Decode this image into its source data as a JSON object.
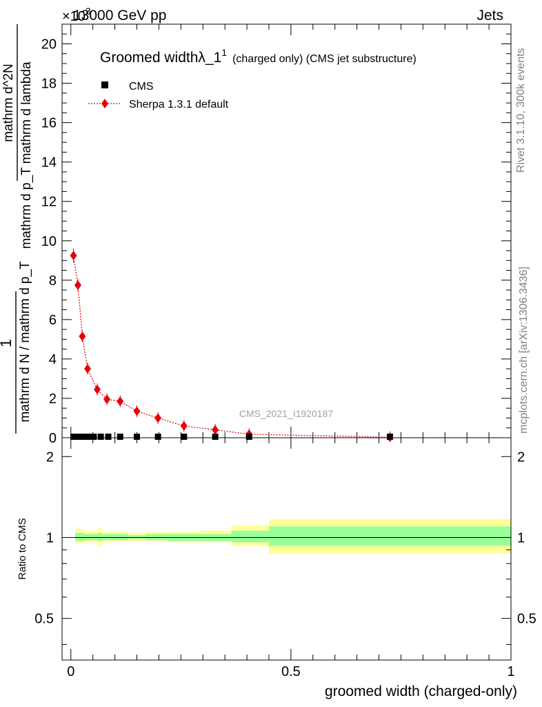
{
  "header": {
    "left_label": "13000 GeV pp",
    "right_label": "Jets",
    "exponent_label": "×10",
    "exponent_power": "3"
  },
  "side_labels": {
    "rivet": "Rivet 3.1.10,  300k events",
    "mcplots": "mcplots.cern.ch [arXiv:1306.3436]"
  },
  "chart_data": [
    {
      "type": "scatter",
      "title": "Groomed width",
      "title_symbol": "λ_1",
      "title_superscript": "1",
      "title_suffix": "(charged only) (CMS jet substructure)",
      "ylabel": {
        "prefactor_num": "1",
        "prefactor_den": "mathrm d N / mathrm d p_T",
        "main_num": "mathrm d^2N",
        "main_den": "mathrm d p_T mathrm d lambda"
      },
      "y_scale_exponent": 3,
      "ylim": [
        0,
        21
      ],
      "xlim": [
        -0.02,
        1.0
      ],
      "yticks_major": [
        0,
        2,
        4,
        6,
        8,
        10,
        12,
        14,
        16,
        18,
        20
      ],
      "ytick_labels": [
        "0",
        "2",
        "4",
        "6",
        "8",
        "10",
        "12",
        "14",
        "16",
        "18",
        "20"
      ],
      "watermark": "CMS_2021_I1920187",
      "legend_position": "top-left",
      "series": [
        {
          "name": "CMS",
          "color": "#000000",
          "marker": "square",
          "x": [
            0.006,
            0.016,
            0.026,
            0.038,
            0.052,
            0.068,
            0.085,
            0.112,
            0.15,
            0.198,
            0.257,
            0.328,
            0.405,
            0.725
          ],
          "y": [
            0.015,
            0.015,
            0.015,
            0.015,
            0.015,
            0.015,
            0.015,
            0.015,
            0.015,
            0.015,
            0.015,
            0.015,
            0.015,
            0.015
          ]
        },
        {
          "name": "Sherpa 1.3.1 default",
          "color": "#e8000b",
          "marker": "diamond",
          "line": "dotted",
          "x": [
            0.006,
            0.016,
            0.026,
            0.038,
            0.06,
            0.082,
            0.112,
            0.15,
            0.198,
            0.257,
            0.328,
            0.405,
            0.725
          ],
          "y": [
            9.25,
            7.75,
            5.15,
            3.5,
            2.45,
            1.95,
            1.85,
            1.35,
            1.0,
            0.6,
            0.4,
            0.18,
            0.02
          ]
        }
      ]
    },
    {
      "type": "area",
      "ylabel": "Ratio to CMS",
      "xlabel": "groomed width (charged-only)",
      "ylim": [
        0.35,
        2.35
      ],
      "log_y": true,
      "xticks": [
        0,
        0.5,
        1
      ],
      "xtick_labels": [
        "0",
        "0.5",
        "1"
      ],
      "yticks": [
        0.5,
        1,
        2
      ],
      "ytick_labels": [
        "0.5",
        "1",
        "2"
      ],
      "reference_line": 1,
      "bands": {
        "colors": {
          "outer": "#ffff99",
          "inner": "#99ff99"
        },
        "edges": [
          0.0,
          0.01,
          0.02,
          0.03,
          0.045,
          0.06,
          0.07,
          0.095,
          0.13,
          0.17,
          0.22,
          0.29,
          0.365,
          0.45,
          1.0
        ],
        "outer_low": [
          0.94,
          0.95,
          0.95,
          0.96,
          0.96,
          0.93,
          0.96,
          0.97,
          0.97,
          0.97,
          0.96,
          0.96,
          0.93,
          0.87
        ],
        "outer_high": [
          1.07,
          1.08,
          1.07,
          1.06,
          1.05,
          1.09,
          1.05,
          1.05,
          1.04,
          1.05,
          1.05,
          1.06,
          1.11,
          1.17
        ],
        "inner_low": [
          0.96,
          0.97,
          0.97,
          0.98,
          0.98,
          0.97,
          0.98,
          0.98,
          0.99,
          0.98,
          0.97,
          0.97,
          0.96,
          0.93
        ],
        "inner_high": [
          1.04,
          1.04,
          1.04,
          1.03,
          1.03,
          1.04,
          1.03,
          1.03,
          1.02,
          1.03,
          1.03,
          1.03,
          1.06,
          1.1
        ]
      }
    }
  ]
}
